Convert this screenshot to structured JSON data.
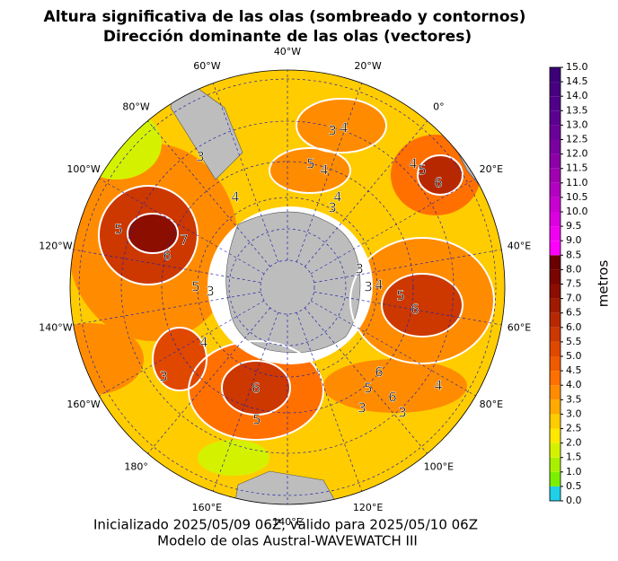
{
  "header": {
    "title_line1": "Altura significativa de las olas (sombreado y contornos)",
    "title_line2": "Dirección dominante de las olas (vectores)"
  },
  "map": {
    "longitude_labels": [
      "40°W",
      "20°W",
      "0°",
      "20°E",
      "40°E",
      "60°E",
      "80°E",
      "100°E",
      "120°E",
      "140°E",
      "160°E",
      "180°",
      "160°W",
      "140°W",
      "120°W",
      "100°W",
      "80°W",
      "60°W"
    ],
    "contour_labels": [
      5,
      6,
      7,
      5,
      3,
      4,
      3,
      3,
      4,
      5,
      4,
      3,
      4,
      5,
      6,
      4,
      5,
      6,
      3,
      3,
      4,
      6,
      5,
      6,
      4,
      3,
      3,
      4,
      3,
      5,
      6
    ]
  },
  "colorbar": {
    "label": "metros",
    "lim": [
      0,
      15
    ],
    "ticks": [
      {
        "value": 0,
        "label": "0.0"
      },
      {
        "value": 0.5,
        "label": "0.5"
      },
      {
        "value": 1,
        "label": "1.0"
      },
      {
        "value": 1.5,
        "label": "1.5"
      },
      {
        "value": 2,
        "label": "2.0"
      },
      {
        "value": 2.5,
        "label": "2.5"
      },
      {
        "value": 3,
        "label": "3.0"
      },
      {
        "value": 3.5,
        "label": "3.5"
      },
      {
        "value": 4,
        "label": "4.0"
      },
      {
        "value": 4.5,
        "label": "4.5"
      },
      {
        "value": 5,
        "label": "5.0"
      },
      {
        "value": 5.5,
        "label": "5.5"
      },
      {
        "value": 6,
        "label": "6.0"
      },
      {
        "value": 6.5,
        "label": "6.5"
      },
      {
        "value": 7,
        "label": "7.0"
      },
      {
        "value": 7.5,
        "label": "7.5"
      },
      {
        "value": 8,
        "label": "8.0"
      },
      {
        "value": 8.5,
        "label": "8.5"
      },
      {
        "value": 9,
        "label": "9.0"
      },
      {
        "value": 9.5,
        "label": "9.5"
      },
      {
        "value": 10,
        "label": "10.0"
      },
      {
        "value": 10.5,
        "label": "10.5"
      },
      {
        "value": 11,
        "label": "11.0"
      },
      {
        "value": 11.5,
        "label": "11.5"
      },
      {
        "value": 12,
        "label": "12.0"
      },
      {
        "value": 12.5,
        "label": "12.5"
      },
      {
        "value": 13,
        "label": "13.0"
      },
      {
        "value": 13.5,
        "label": "13.5"
      },
      {
        "value": 14,
        "label": "14.0"
      },
      {
        "value": 14.5,
        "label": "14.5"
      },
      {
        "value": 15,
        "label": "15.0"
      }
    ],
    "colors": [
      "#1fd0e8",
      "#7cf000",
      "#a8f000",
      "#d4f200",
      "#ffe800",
      "#ffcc00",
      "#ffaa00",
      "#ff8c00",
      "#ff7000",
      "#f05a00",
      "#e04800",
      "#cc3800",
      "#b82800",
      "#a01a00",
      "#8c0e00",
      "#7a0400",
      "#6a0000",
      "#ff00ff",
      "#f000f0",
      "#dc00e0",
      "#c800d0",
      "#b400c0",
      "#a000b0",
      "#8c00a8",
      "#7a00a0",
      "#6a0098",
      "#5c0090",
      "#500088",
      "#460080",
      "#3c0078"
    ]
  },
  "footer": {
    "line1": "Inicializado 2025/05/09 06Z, válido para 2025/05/10 06Z",
    "line2": "Modelo de olas Austral-WAVEWATCH III"
  }
}
